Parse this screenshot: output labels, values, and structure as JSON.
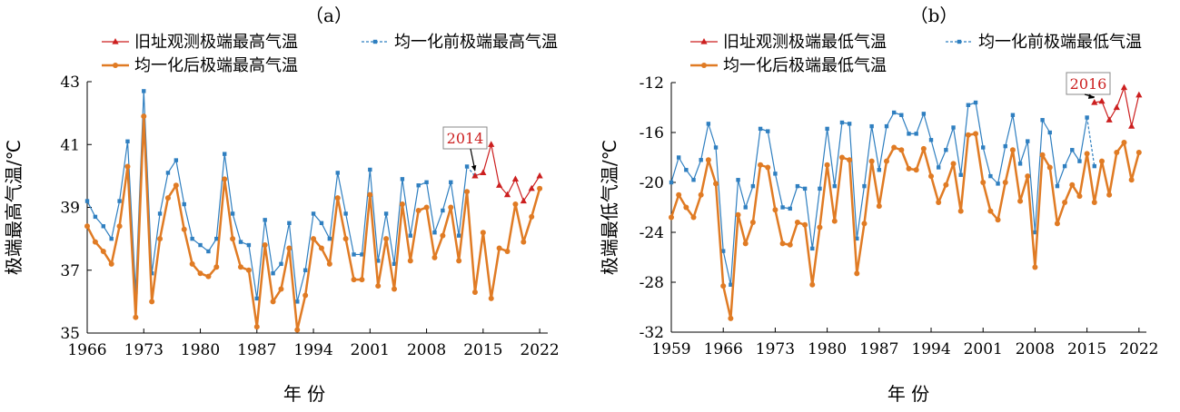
{
  "chart_data": [
    {
      "type": "line",
      "title": "（a）",
      "xlabel": "年 份",
      "ylabel": "极端最高气温/℃",
      "xlim": [
        1966,
        2023
      ],
      "ylim": [
        35,
        43
      ],
      "xticks": [
        1966,
        1973,
        1980,
        1987,
        1994,
        2001,
        2008,
        2015,
        2022
      ],
      "yticks": [
        35,
        37,
        39,
        41,
        43
      ],
      "annotation": {
        "label": "2014",
        "x": 2014
      },
      "legend_position": "top",
      "series": [
        {
          "name": "旧址观测极端最高气温",
          "color": "#cc1f1f",
          "marker": "triangle",
          "x": [
            2014,
            2015,
            2016,
            2017,
            2018,
            2019,
            2020,
            2021,
            2022
          ],
          "values": [
            40.0,
            40.1,
            41.0,
            39.7,
            39.4,
            39.9,
            39.2,
            39.6,
            40.0
          ]
        },
        {
          "name": "均一化前极端最高气温",
          "color": "#2f7fc0",
          "marker": "square",
          "x": [
            1966,
            1967,
            1968,
            1969,
            1970,
            1971,
            1972,
            1973,
            1974,
            1975,
            1976,
            1977,
            1978,
            1979,
            1980,
            1981,
            1982,
            1983,
            1984,
            1985,
            1986,
            1987,
            1988,
            1989,
            1990,
            1991,
            1992,
            1993,
            1994,
            1995,
            1996,
            1997,
            1998,
            1999,
            2000,
            2001,
            2002,
            2003,
            2004,
            2005,
            2006,
            2007,
            2008,
            2009,
            2010,
            2011,
            2012,
            2013,
            2014
          ],
          "values": [
            39.2,
            38.7,
            38.4,
            38.0,
            39.2,
            41.1,
            36.3,
            42.7,
            36.9,
            38.8,
            40.1,
            40.5,
            39.1,
            38.0,
            37.8,
            37.6,
            38.0,
            40.7,
            38.8,
            37.9,
            37.8,
            36.1,
            38.6,
            36.9,
            37.2,
            38.5,
            36.0,
            37.0,
            38.8,
            38.5,
            38.0,
            40.1,
            38.8,
            37.5,
            37.5,
            40.2,
            37.3,
            38.8,
            37.2,
            39.9,
            38.1,
            39.7,
            39.8,
            38.2,
            38.9,
            39.8,
            38.1,
            40.3,
            40.0
          ]
        },
        {
          "name": "均一化后极端最高气温",
          "color": "#e07b24",
          "marker": "circle",
          "x": [
            1966,
            1967,
            1968,
            1969,
            1970,
            1971,
            1972,
            1973,
            1974,
            1975,
            1976,
            1977,
            1978,
            1979,
            1980,
            1981,
            1982,
            1983,
            1984,
            1985,
            1986,
            1987,
            1988,
            1989,
            1990,
            1991,
            1992,
            1993,
            1994,
            1995,
            1996,
            1997,
            1998,
            1999,
            2000,
            2001,
            2002,
            2003,
            2004,
            2005,
            2006,
            2007,
            2008,
            2009,
            2010,
            2011,
            2012,
            2013,
            2014,
            2015,
            2016,
            2017,
            2018,
            2019,
            2020,
            2021,
            2022
          ],
          "values": [
            38.4,
            37.9,
            37.6,
            37.2,
            38.4,
            40.3,
            35.5,
            41.9,
            36.0,
            38.0,
            39.3,
            39.7,
            38.3,
            37.2,
            36.9,
            36.8,
            37.1,
            39.9,
            38.0,
            37.1,
            37.0,
            35.2,
            37.8,
            36.0,
            36.4,
            37.7,
            35.1,
            36.2,
            38.0,
            37.7,
            37.2,
            39.3,
            38.0,
            36.7,
            36.7,
            39.4,
            36.5,
            38.0,
            36.4,
            39.1,
            37.3,
            38.9,
            39.0,
            37.4,
            38.1,
            39.0,
            37.3,
            39.5,
            36.3,
            38.2,
            36.1,
            37.7,
            37.6,
            39.1,
            37.9,
            38.7,
            39.6
          ]
        }
      ]
    },
    {
      "type": "line",
      "title": "（b）",
      "xlabel": "年 份",
      "ylabel": "极端最低气温/℃",
      "xlim": [
        1959,
        2023
      ],
      "ylim": [
        -32,
        -12
      ],
      "xticks": [
        1959,
        1966,
        1973,
        1980,
        1987,
        1994,
        2001,
        2008,
        2015,
        2022
      ],
      "yticks": [
        -32,
        -28,
        -24,
        -20,
        -16,
        -12
      ],
      "annotation": {
        "label": "2016",
        "x": 2016
      },
      "legend_position": "top",
      "series": [
        {
          "name": "旧址观测极端最低气温",
          "color": "#cc1f1f",
          "marker": "triangle",
          "x": [
            2016,
            2017,
            2018,
            2019,
            2020,
            2021,
            2022
          ],
          "values": [
            -13.6,
            -13.5,
            -15.0,
            -14.0,
            -12.4,
            -15.5,
            -13.0
          ]
        },
        {
          "name": "均一化前极端最低气温",
          "color": "#2f7fc0",
          "marker": "square",
          "x": [
            1959,
            1960,
            1961,
            1962,
            1963,
            1964,
            1965,
            1966,
            1967,
            1968,
            1969,
            1970,
            1971,
            1972,
            1973,
            1974,
            1975,
            1976,
            1977,
            1978,
            1979,
            1980,
            1981,
            1982,
            1983,
            1984,
            1985,
            1986,
            1987,
            1988,
            1989,
            1990,
            1991,
            1992,
            1993,
            1994,
            1995,
            1996,
            1997,
            1998,
            1999,
            2000,
            2001,
            2002,
            2003,
            2004,
            2005,
            2006,
            2007,
            2008,
            2009,
            2010,
            2011,
            2012,
            2013,
            2014,
            2015,
            2016
          ],
          "values": [
            -20.0,
            -18.0,
            -19.0,
            -19.8,
            -18.2,
            -15.3,
            -17.2,
            -25.5,
            -28.2,
            -19.8,
            -22.0,
            -20.3,
            -15.7,
            -15.9,
            -19.3,
            -22.0,
            -22.1,
            -20.3,
            -20.5,
            -25.3,
            -20.5,
            -15.7,
            -20.3,
            -15.2,
            -15.3,
            -24.5,
            -20.3,
            -15.5,
            -19.0,
            -15.5,
            -14.4,
            -14.6,
            -16.1,
            -16.1,
            -14.5,
            -16.6,
            -18.8,
            -17.4,
            -15.6,
            -19.4,
            -13.8,
            -13.6,
            -17.2,
            -19.5,
            -20.1,
            -17.1,
            -14.6,
            -18.5,
            -16.7,
            -24.0,
            -15.0,
            -16.0,
            -20.3,
            -18.7,
            -17.4,
            -18.3,
            -14.8,
            -18.7
          ]
        },
        {
          "name": "均一化后极端最低气温",
          "color": "#e07b24",
          "marker": "circle",
          "x": [
            1959,
            1960,
            1961,
            1962,
            1963,
            1964,
            1965,
            1966,
            1967,
            1968,
            1969,
            1970,
            1971,
            1972,
            1973,
            1974,
            1975,
            1976,
            1977,
            1978,
            1979,
            1980,
            1981,
            1982,
            1983,
            1984,
            1985,
            1986,
            1987,
            1988,
            1989,
            1990,
            1991,
            1992,
            1993,
            1994,
            1995,
            1996,
            1997,
            1998,
            1999,
            2000,
            2001,
            2002,
            2003,
            2004,
            2005,
            2006,
            2007,
            2008,
            2009,
            2010,
            2011,
            2012,
            2013,
            2014,
            2015,
            2016,
            2017,
            2018,
            2019,
            2020,
            2021,
            2022
          ],
          "values": [
            -22.8,
            -21.0,
            -22.0,
            -22.8,
            -21.0,
            -18.2,
            -20.1,
            -28.3,
            -30.9,
            -22.6,
            -24.9,
            -23.2,
            -18.6,
            -18.8,
            -22.2,
            -24.9,
            -25.0,
            -23.2,
            -23.4,
            -28.2,
            -23.6,
            -18.6,
            -23.1,
            -18.0,
            -18.2,
            -27.3,
            -23.3,
            -18.3,
            -21.9,
            -18.3,
            -17.2,
            -17.4,
            -18.9,
            -19.0,
            -17.3,
            -19.5,
            -21.6,
            -20.2,
            -18.5,
            -22.3,
            -16.2,
            -16.1,
            -20.0,
            -22.3,
            -23.0,
            -20.0,
            -17.4,
            -21.5,
            -19.5,
            -26.8,
            -17.8,
            -18.8,
            -23.3,
            -21.6,
            -20.2,
            -21.1,
            -17.7,
            -21.6,
            -18.3,
            -21.0,
            -17.6,
            -16.8,
            -19.8,
            -17.6
          ]
        }
      ]
    }
  ]
}
